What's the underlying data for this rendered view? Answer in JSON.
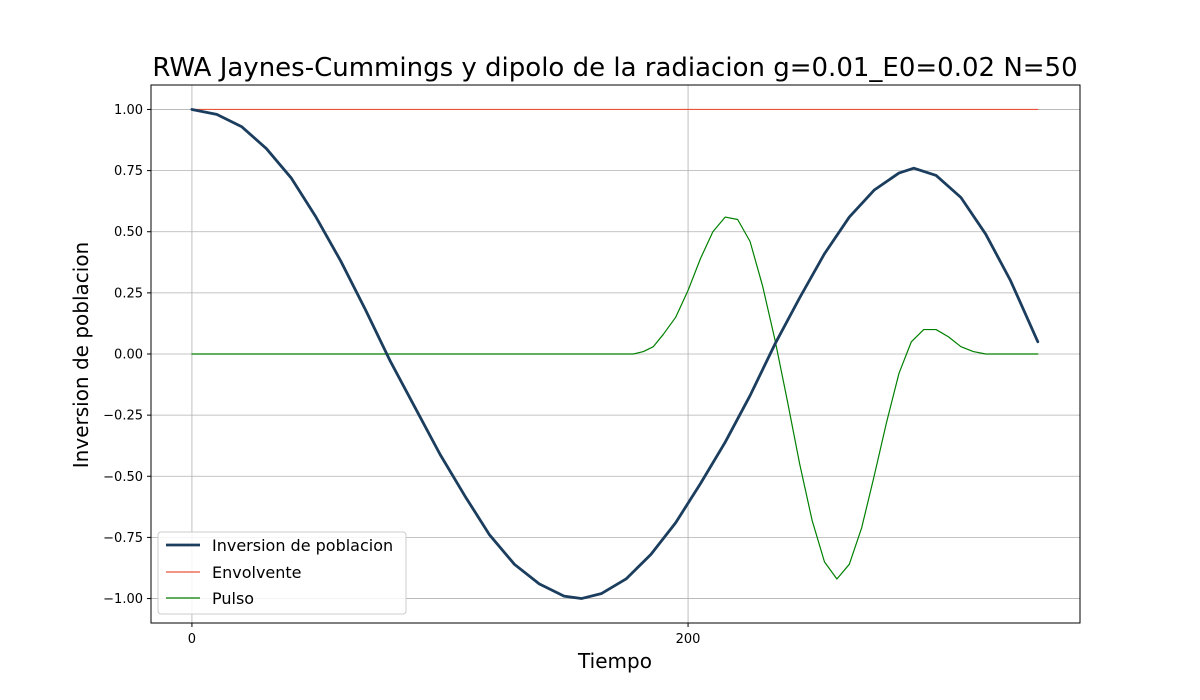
{
  "chart_data": {
    "type": "line",
    "title": "RWA Jaynes-Cummings y dipolo de la radiacion g=0.01_E0=0.02 N=50",
    "xlabel": "Tiempo",
    "ylabel": "Inversion de poblacion",
    "xlim": [
      -16.5,
      358
    ],
    "ylim": [
      -1.1,
      1.1
    ],
    "xticks": [
      0,
      200
    ],
    "xtick_labels": [
      "0",
      "200"
    ],
    "yticks": [
      1.0,
      0.75,
      0.5,
      0.25,
      0.0,
      -0.25,
      -0.5,
      -0.75,
      -1.0
    ],
    "ytick_labels": [
      "1.00",
      "0.75",
      "0.50",
      "0.25",
      "0.00",
      "−0.25",
      "−0.50",
      "−0.75",
      "−1.00"
    ],
    "grid": true,
    "legend_position": "lower-left",
    "series": [
      {
        "name": "Inversion de poblacion",
        "color": "#1b3d5e",
        "x": [
          0,
          10,
          20,
          30,
          40,
          50,
          60,
          70,
          80,
          90,
          100,
          110,
          120,
          130,
          140,
          150,
          157,
          165,
          175,
          185,
          195,
          205,
          215,
          225,
          235,
          245,
          255,
          265,
          275,
          285,
          291,
          300,
          310,
          320,
          330,
          341
        ],
        "y": [
          1.0,
          0.98,
          0.93,
          0.84,
          0.72,
          0.56,
          0.38,
          0.18,
          -0.03,
          -0.22,
          -0.41,
          -0.58,
          -0.74,
          -0.86,
          -0.94,
          -0.99,
          -1.0,
          -0.98,
          -0.92,
          -0.82,
          -0.69,
          -0.53,
          -0.36,
          -0.17,
          0.04,
          0.23,
          0.41,
          0.56,
          0.67,
          0.74,
          0.76,
          0.73,
          0.64,
          0.49,
          0.3,
          0.05
        ]
      },
      {
        "name": "Envolvente",
        "color": "#e8533a",
        "x": [
          0,
          341
        ],
        "y": [
          1.0,
          1.0
        ]
      },
      {
        "name": "Pulso",
        "color": "#008000",
        "x": [
          0,
          170,
          178,
          182,
          186,
          190,
          195,
          200,
          205,
          210,
          215,
          220,
          225,
          230,
          235,
          240,
          245,
          250,
          255,
          260,
          265,
          270,
          275,
          280,
          285,
          290,
          295,
          300,
          305,
          310,
          315,
          320,
          325,
          330,
          335,
          341
        ],
        "y": [
          0.0,
          0.0,
          0.0,
          0.01,
          0.03,
          0.08,
          0.15,
          0.26,
          0.39,
          0.5,
          0.56,
          0.55,
          0.46,
          0.28,
          0.06,
          -0.19,
          -0.45,
          -0.68,
          -0.85,
          -0.92,
          -0.86,
          -0.71,
          -0.5,
          -0.28,
          -0.08,
          0.05,
          0.1,
          0.1,
          0.07,
          0.03,
          0.01,
          0.0,
          0.0,
          0.0,
          0.0,
          0.0
        ]
      }
    ]
  }
}
